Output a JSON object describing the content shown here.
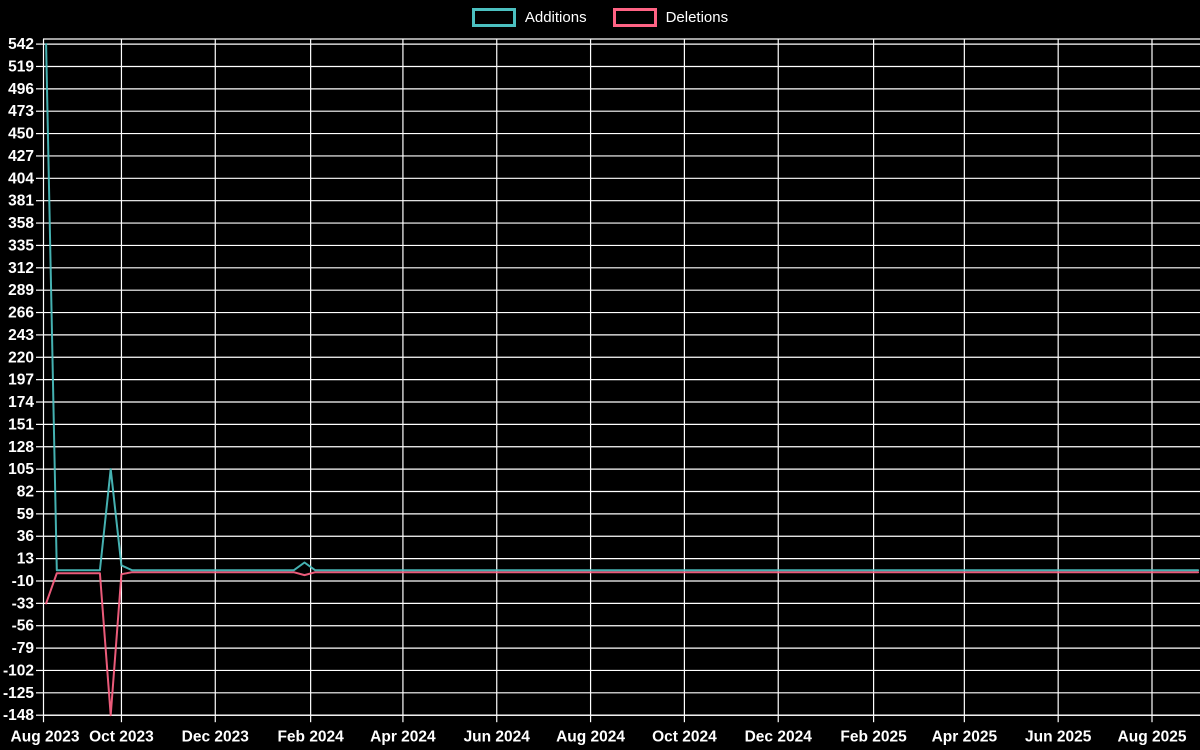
{
  "app": {
    "background_color": "#000000"
  },
  "legend": {
    "items": [
      {
        "label": "Additions",
        "color": "#4bc0c0"
      },
      {
        "label": "Deletions",
        "color": "#ff6384"
      }
    ]
  },
  "chart_data": {
    "type": "line",
    "title": "",
    "legend_position": "top-center",
    "grid": true,
    "background_color": "#000000",
    "grid_color": "#ffffff",
    "text_color": "#ffffff",
    "x_axis": {
      "type": "time",
      "range_start": "2023-08-11",
      "range_end": "2025-08-31",
      "tick_labels": [
        "Aug 2023",
        "Oct 2023",
        "Dec 2023",
        "Feb 2024",
        "Apr 2024",
        "Jun 2024",
        "Aug 2024",
        "Oct 2024",
        "Dec 2024",
        "Feb 2025",
        "Apr 2025",
        "Jun 2025",
        "Aug 2025"
      ]
    },
    "y_axis": {
      "min": -148,
      "max": 542,
      "step": 23,
      "tick_labels": [
        542,
        519,
        496,
        473,
        450,
        427,
        404,
        381,
        358,
        335,
        312,
        289,
        266,
        243,
        220,
        197,
        174,
        151,
        128,
        105,
        82,
        59,
        36,
        13,
        -10,
        -33,
        -56,
        -79,
        -102,
        -125,
        -148
      ]
    },
    "x_dates": [
      "2023-08-13",
      "2023-08-20",
      "2023-08-27",
      "2023-09-03",
      "2023-09-10",
      "2023-09-17",
      "2023-09-24",
      "2023-10-01",
      "2023-10-08",
      "2024-01-21",
      "2024-01-28",
      "2024-02-04",
      "2025-08-31"
    ],
    "series": [
      {
        "name": "Additions",
        "color": "#4bc0c0",
        "values": [
          542,
          1,
          1,
          1,
          1,
          1,
          105,
          6,
          1,
          1,
          9,
          1,
          1
        ]
      },
      {
        "name": "Deletions",
        "color": "#ff6384",
        "values": [
          -33,
          -2,
          -2,
          -2,
          -2,
          -2,
          -148,
          -3,
          -1,
          -1,
          -4,
          -1,
          -1
        ]
      }
    ]
  }
}
